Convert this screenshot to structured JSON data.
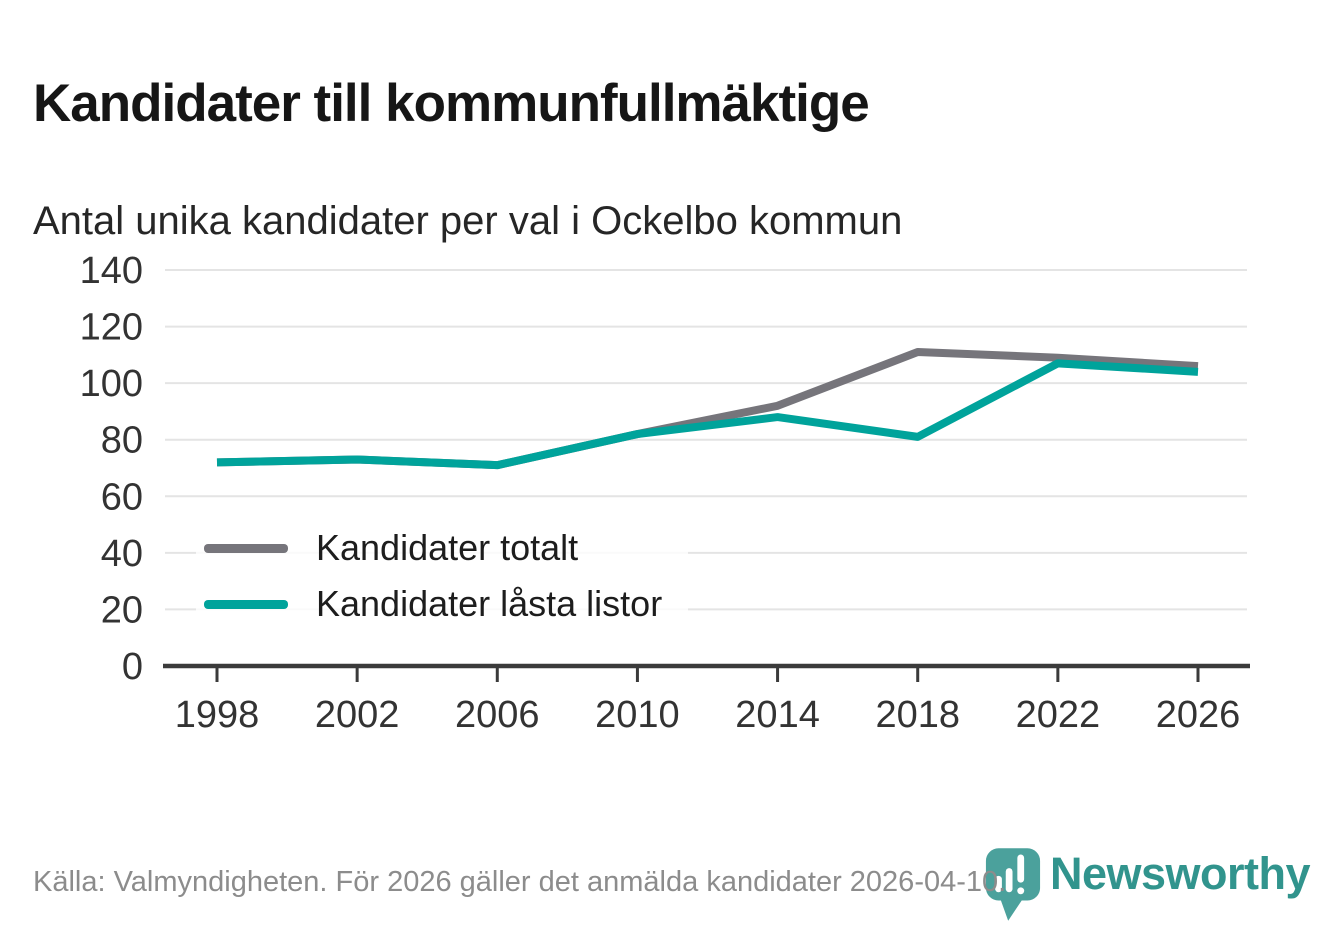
{
  "header": {
    "title": "Kandidater till kommunfullmäktige",
    "subtitle": "Antal unika kandidater per val i Ockelbo kommun"
  },
  "chart_data": {
    "type": "line",
    "title": "Kandidater till kommunfullmäktige",
    "subtitle": "Antal unika kandidater per val i Ockelbo kommun",
    "x": [
      1998,
      2002,
      2006,
      2010,
      2014,
      2018,
      2022,
      2026
    ],
    "series": [
      {
        "name": "Kandidater totalt",
        "color": "#76757b",
        "values": [
          72,
          73,
          71,
          82,
          92,
          111,
          109,
          106
        ]
      },
      {
        "name": "Kandidater låsta listor",
        "color": "#00a39b",
        "values": [
          72,
          73,
          71,
          82,
          88,
          81,
          107,
          104
        ]
      }
    ],
    "xlabel": "",
    "ylabel": "",
    "ylim": [
      0,
      140
    ],
    "yticks": [
      0,
      20,
      40,
      60,
      80,
      100,
      120,
      140
    ],
    "grid": "horizontal",
    "legend_position": "inside-left-bottom"
  },
  "footer": {
    "source": "Källa: Valmyndigheten. För 2026 gäller det anmälda kandidater 2026-04-10."
  },
  "logo": {
    "wordmark": "Newsworthy",
    "icon": "newsworthy-bubble-barchart-icon",
    "color": "#31948d",
    "icon_color": "#4ba19c"
  },
  "colors": {
    "accent_teal": "#00a39b",
    "line_gray": "#76757b",
    "axis": "#3b3b3b",
    "gridline": "#e4e4e4",
    "tick_label": "#333333"
  }
}
